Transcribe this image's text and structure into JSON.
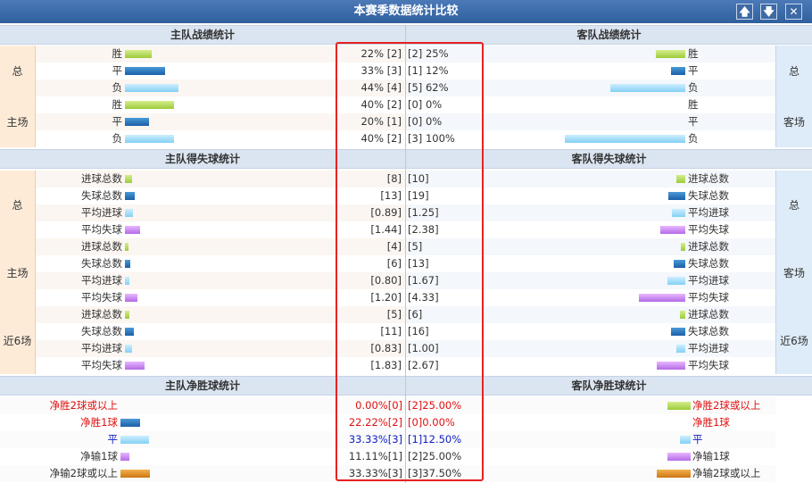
{
  "window": {
    "title": "本赛季数据统计比较",
    "up": "🡅",
    "down": "🡇",
    "close": "✕"
  },
  "sec1": {
    "home_title": "主队战绩统计",
    "away_title": "客队战绩统计",
    "home_total_label": "总",
    "home_home_label": "主场",
    "away_total_label": "总",
    "away_away_label": "客场",
    "rows": [
      {
        "hl": "胜",
        "hv": "22% [2]",
        "av": "[2] 25%",
        "al": "胜"
      },
      {
        "hl": "平",
        "hv": "33% [3]",
        "av": "[1] 12%",
        "al": "平"
      },
      {
        "hl": "负",
        "hv": "44% [4]",
        "av": "[5] 62%",
        "al": "负"
      },
      {
        "hl": "胜",
        "hv": "40% [2]",
        "av": "[0] 0%",
        "al": "胜"
      },
      {
        "hl": "平",
        "hv": "20% [1]",
        "av": "[0] 0%",
        "al": "平"
      },
      {
        "hl": "负",
        "hv": "40% [2]",
        "av": "[3] 100%",
        "al": "负"
      }
    ]
  },
  "sec2": {
    "home_title": "主队得失球统计",
    "away_title": "客队得失球统计",
    "l_total": "总",
    "l_home": "主场",
    "l_last6": "近6场",
    "r_total": "总",
    "r_away": "客场",
    "r_last6": "近6场",
    "rows": [
      {
        "hl": "进球总数",
        "hv": "[8]",
        "av": "[10]",
        "al": "进球总数"
      },
      {
        "hl": "失球总数",
        "hv": "[13]",
        "av": "[19]",
        "al": "失球总数"
      },
      {
        "hl": "平均进球",
        "hv": "[0.89]",
        "av": "[1.25]",
        "al": "平均进球"
      },
      {
        "hl": "平均失球",
        "hv": "[1.44]",
        "av": "[2.38]",
        "al": "平均失球"
      },
      {
        "hl": "进球总数",
        "hv": "[4]",
        "av": "[5]",
        "al": "进球总数"
      },
      {
        "hl": "失球总数",
        "hv": "[6]",
        "av": "[13]",
        "al": "失球总数"
      },
      {
        "hl": "平均进球",
        "hv": "[0.80]",
        "av": "[1.67]",
        "al": "平均进球"
      },
      {
        "hl": "平均失球",
        "hv": "[1.20]",
        "av": "[4.33]",
        "al": "平均失球"
      },
      {
        "hl": "进球总数",
        "hv": "[5]",
        "av": "[6]",
        "al": "进球总数"
      },
      {
        "hl": "失球总数",
        "hv": "[11]",
        "av": "[16]",
        "al": "失球总数"
      },
      {
        "hl": "平均进球",
        "hv": "[0.83]",
        "av": "[1.00]",
        "al": "平均进球"
      },
      {
        "hl": "平均失球",
        "hv": "[1.83]",
        "av": "[2.67]",
        "al": "平均失球"
      }
    ]
  },
  "sec3": {
    "home_title": "主队净胜球统计",
    "away_title": "客队净胜球统计",
    "rows": [
      {
        "hl": "净胜2球或以上",
        "hv": "0.00%[0]",
        "av": "[2]25.00%",
        "al": "净胜2球或以上"
      },
      {
        "hl": "净胜1球",
        "hv": "22.22%[2]",
        "av": "[0]0.00%",
        "al": "净胜1球"
      },
      {
        "hl": "平",
        "hv": "33.33%[3]",
        "av": "[1]12.50%",
        "al": "平"
      },
      {
        "hl": "净输1球",
        "hv": "11.11%[1]",
        "av": "[2]25.00%",
        "al": "净输1球"
      },
      {
        "hl": "净输2球或以上",
        "hv": "33.33%[3]",
        "av": "[3]37.50%",
        "al": "净输2球或以上"
      }
    ]
  },
  "colors": {
    "win": "#9ccb3a",
    "draw": "#1b5ea6",
    "loss": "#84d0f4",
    "avg_lost": "#b36be6",
    "lose2": "#cc7713",
    "highlight": "#e62222"
  }
}
